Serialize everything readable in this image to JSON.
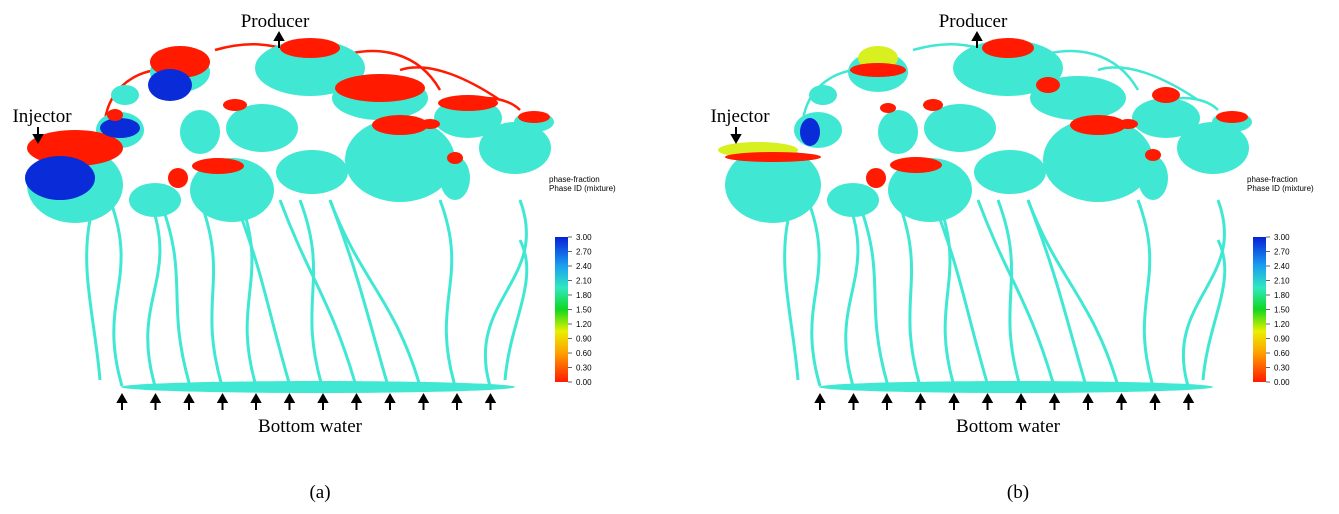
{
  "panels": [
    {
      "injector": "Injector",
      "producer": "Producer",
      "bottom": "Bottom water",
      "colorbar": {
        "title": "phase-fraction",
        "subtitle": "Phase ID (mixture)",
        "range": [
          0,
          3
        ],
        "ticks": [
          {
            "value": 3,
            "label": "3.00"
          },
          {
            "value": 2.7,
            "label": "2.70"
          },
          {
            "value": 2.4,
            "label": "2.40"
          },
          {
            "value": 2.1,
            "label": "2.10"
          },
          {
            "value": 1.8,
            "label": "1.80"
          },
          {
            "value": 1.5,
            "label": "1.50"
          },
          {
            "value": 1.2,
            "label": "1.20"
          },
          {
            "value": 0.9,
            "label": "0.90"
          },
          {
            "value": 0.6,
            "label": "0.60"
          },
          {
            "value": 0.3,
            "label": "0.30"
          },
          {
            "value": 0,
            "label": "0.00"
          }
        ]
      },
      "caption": "(a)"
    },
    {
      "injector": "Injector",
      "producer": "Producer",
      "bottom": "Bottom water",
      "colorbar": {
        "title": "phase-fraction",
        "subtitle": "Phase ID (mixture)",
        "range": [
          0,
          3
        ],
        "ticks": [
          {
            "value": 3,
            "label": "3.00"
          },
          {
            "value": 2.7,
            "label": "2.70"
          },
          {
            "value": 2.4,
            "label": "2.40"
          },
          {
            "value": 2.1,
            "label": "2.10"
          },
          {
            "value": 1.8,
            "label": "1.80"
          },
          {
            "value": 1.5,
            "label": "1.50"
          },
          {
            "value": 1.2,
            "label": "1.20"
          },
          {
            "value": 0.9,
            "label": "0.90"
          },
          {
            "value": 0.6,
            "label": "0.60"
          },
          {
            "value": 0.3,
            "label": "0.30"
          },
          {
            "value": 0,
            "label": "0.00"
          }
        ]
      },
      "caption": "(b)"
    }
  ]
}
